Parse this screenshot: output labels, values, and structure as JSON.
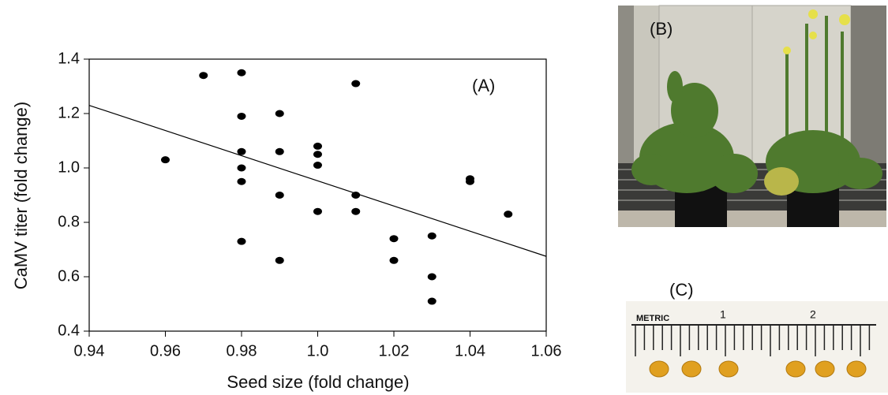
{
  "chart_data": {
    "type": "scatter",
    "annotation": "(A)",
    "x_label": "Seed size (fold change)",
    "y_label": "CaMV titer (fold change)",
    "x": [
      0.96,
      0.97,
      0.98,
      0.98,
      0.98,
      0.98,
      0.98,
      0.98,
      0.99,
      0.99,
      0.99,
      0.99,
      1.0,
      1.0,
      1.0,
      1.0,
      1.01,
      1.01,
      1.01,
      1.02,
      1.02,
      1.03,
      1.03,
      1.03,
      1.04,
      1.04,
      1.05
    ],
    "values": [
      1.03,
      1.34,
      1.35,
      1.19,
      1.06,
      1.0,
      0.95,
      0.73,
      1.2,
      1.06,
      0.9,
      0.66,
      1.08,
      1.05,
      1.01,
      0.84,
      1.31,
      0.9,
      0.84,
      0.74,
      0.66,
      0.75,
      0.6,
      0.51,
      0.96,
      0.95,
      0.83
    ],
    "color": "#000000",
    "trendline": {
      "x": [
        0.94,
        1.06
      ],
      "values": [
        1.23,
        0.675
      ]
    },
    "xlim": [
      0.94,
      1.06
    ],
    "ylim": [
      0.4,
      1.4
    ],
    "xticks": [
      0.94,
      0.96,
      0.98,
      {
        "value": 1.0,
        "label": "1.0"
      },
      1.02,
      1.04,
      1.06
    ],
    "yticks": [
      0.4,
      0.6,
      0.8,
      {
        "value": 1.0,
        "label": "1.0"
      },
      1.2,
      1.4
    ]
  },
  "panels": {
    "b_label": "(B)",
    "c_label": "(C)",
    "ruler": {
      "metric": "METRIC",
      "marks": [
        "1",
        "2"
      ]
    }
  }
}
